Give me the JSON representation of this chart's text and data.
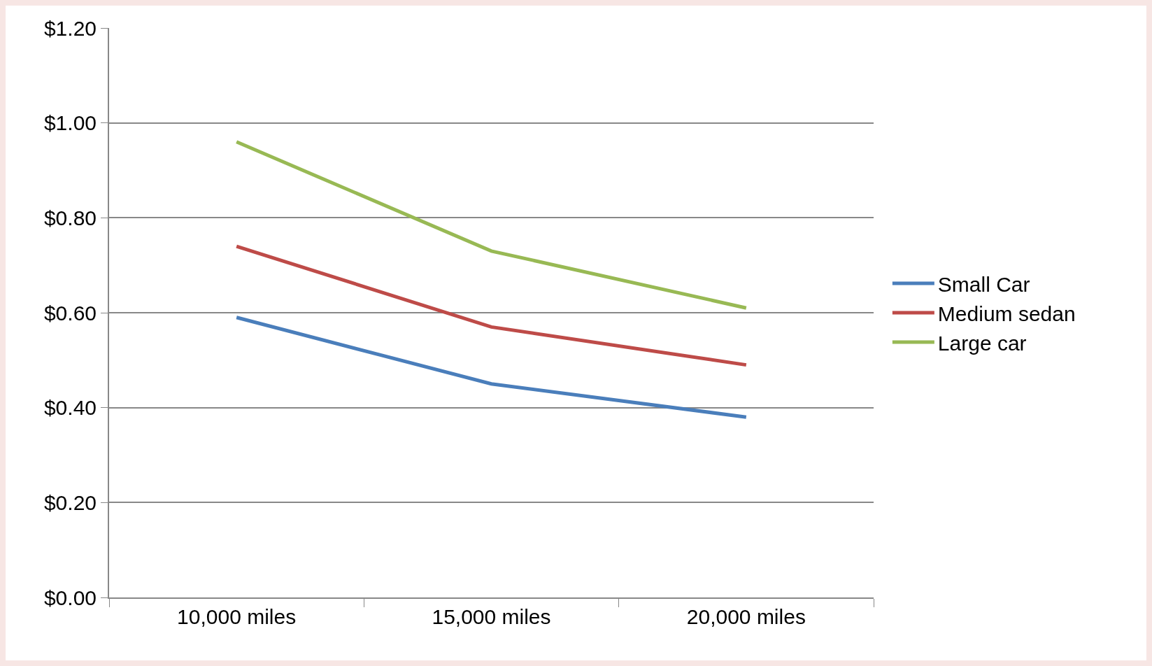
{
  "chart_data": {
    "type": "line",
    "categories": [
      "10,000 miles",
      "15,000 miles",
      "20,000 miles"
    ],
    "series": [
      {
        "name": "Small Car",
        "color": "#4a7ebb",
        "values": [
          0.59,
          0.45,
          0.38
        ]
      },
      {
        "name": "Medium sedan",
        "color": "#be4b48",
        "values": [
          0.74,
          0.57,
          0.49
        ]
      },
      {
        "name": "Large car",
        "color": "#98b954",
        "values": [
          0.96,
          0.73,
          0.61
        ]
      }
    ],
    "ylim": [
      0,
      1.2
    ],
    "yticks": [
      {
        "value": 0,
        "label": "$0.00"
      },
      {
        "value": 0.2,
        "label": "$0.20"
      },
      {
        "value": 0.4,
        "label": "$0.40"
      },
      {
        "value": 0.6,
        "label": "$0.60"
      },
      {
        "value": 0.8,
        "label": "$0.80"
      },
      {
        "value": 1.0,
        "label": "$1.00"
      },
      {
        "value": 1.2,
        "label": "$1.20"
      }
    ],
    "grid": "y",
    "legend": "right",
    "marker": "none",
    "line_style": "solid"
  }
}
